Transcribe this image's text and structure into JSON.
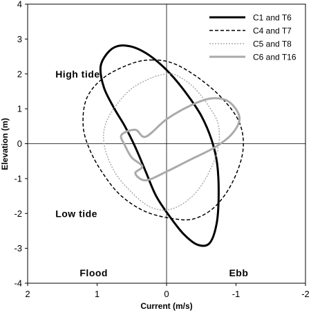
{
  "chart_data": {
    "type": "line",
    "xlabel": "Current (m/s)",
    "ylabel": "Elevation (m)",
    "xlim": [
      2,
      -2
    ],
    "ylim": [
      -4,
      4
    ],
    "x_reversed": true,
    "x_ticks": [
      2,
      1,
      0,
      -1,
      -2
    ],
    "y_ticks": [
      -4,
      -3,
      -2,
      -1,
      0,
      1,
      2,
      3,
      4
    ],
    "zero_lines": true,
    "legend_position": "top-right",
    "annotations": [
      {
        "text": "High tide",
        "x": 1.6,
        "y": 2.0
      },
      {
        "text": "Low tide",
        "x": 1.6,
        "y": -2.0
      },
      {
        "text": "Flood",
        "x": 1.25,
        "y": -3.7
      },
      {
        "text": "Ebb",
        "x": -0.9,
        "y": -3.7
      }
    ],
    "series": [
      {
        "name": "C1 and T6",
        "color": "#000000",
        "dash": "solid",
        "width": 3,
        "points": [
          [
            0.7,
            2.8
          ],
          [
            0.85,
            2.6
          ],
          [
            0.95,
            2.2
          ],
          [
            0.9,
            1.6
          ],
          [
            0.75,
            1.0
          ],
          [
            0.6,
            0.5
          ],
          [
            0.45,
            -0.1
          ],
          [
            0.3,
            -0.8
          ],
          [
            0.15,
            -1.5
          ],
          [
            -0.05,
            -2.1
          ],
          [
            -0.25,
            -2.6
          ],
          [
            -0.45,
            -2.9
          ],
          [
            -0.62,
            -2.85
          ],
          [
            -0.72,
            -2.3
          ],
          [
            -0.75,
            -1.5
          ],
          [
            -0.73,
            -0.6
          ],
          [
            -0.65,
            0.1
          ],
          [
            -0.5,
            0.8
          ],
          [
            -0.3,
            1.4
          ],
          [
            -0.1,
            1.9
          ],
          [
            0.1,
            2.3
          ],
          [
            0.3,
            2.6
          ],
          [
            0.5,
            2.78
          ],
          [
            0.7,
            2.8
          ]
        ]
      },
      {
        "name": "C4 and T7",
        "color": "#000000",
        "dash": "dashed",
        "width": 1.5,
        "points": [
          [
            0.2,
            2.4
          ],
          [
            0.5,
            2.3
          ],
          [
            0.9,
            1.9
          ],
          [
            1.15,
            1.3
          ],
          [
            1.2,
            0.5
          ],
          [
            1.1,
            -0.2
          ],
          [
            0.9,
            -0.9
          ],
          [
            0.65,
            -1.5
          ],
          [
            0.3,
            -1.95
          ],
          [
            -0.1,
            -2.15
          ],
          [
            -0.4,
            -2.15
          ],
          [
            -0.7,
            -1.8
          ],
          [
            -0.95,
            -1.1
          ],
          [
            -1.1,
            -0.2
          ],
          [
            -1.05,
            0.6
          ],
          [
            -0.8,
            1.3
          ],
          [
            -0.45,
            1.9
          ],
          [
            -0.1,
            2.3
          ],
          [
            0.2,
            2.4
          ]
        ]
      },
      {
        "name": "C5 and T8",
        "color": "#aaaaaa",
        "dash": "dotted",
        "width": 1.5,
        "points": [
          [
            -0.05,
            2.0
          ],
          [
            0.2,
            1.9
          ],
          [
            0.55,
            1.5
          ],
          [
            0.85,
            0.7
          ],
          [
            0.9,
            0.0
          ],
          [
            0.75,
            -0.8
          ],
          [
            0.5,
            -1.4
          ],
          [
            0.25,
            -1.8
          ],
          [
            0.0,
            -1.9
          ],
          [
            -0.25,
            -1.7
          ],
          [
            -0.5,
            -1.2
          ],
          [
            -0.72,
            -0.3
          ],
          [
            -0.75,
            0.5
          ],
          [
            -0.6,
            1.1
          ],
          [
            -0.4,
            1.6
          ],
          [
            -0.2,
            1.9
          ],
          [
            -0.05,
            2.0
          ]
        ]
      },
      {
        "name": "C6 and T16",
        "color": "#aaaaaa",
        "dash": "solid",
        "width": 3,
        "points": [
          [
            0.3,
            0.2
          ],
          [
            0.0,
            0.7
          ],
          [
            -0.35,
            1.1
          ],
          [
            -0.65,
            1.3
          ],
          [
            -0.9,
            1.2
          ],
          [
            -1.05,
            0.75
          ],
          [
            -0.95,
            0.3
          ],
          [
            -0.7,
            -0.1
          ],
          [
            -0.35,
            -0.45
          ],
          [
            0.0,
            -0.8
          ],
          [
            0.3,
            -1.05
          ],
          [
            0.45,
            -0.85
          ],
          [
            0.35,
            -0.65
          ],
          [
            0.5,
            -0.4
          ],
          [
            0.6,
            -0.05
          ],
          [
            0.65,
            0.25
          ],
          [
            0.45,
            0.4
          ],
          [
            0.3,
            0.2
          ]
        ]
      }
    ]
  }
}
